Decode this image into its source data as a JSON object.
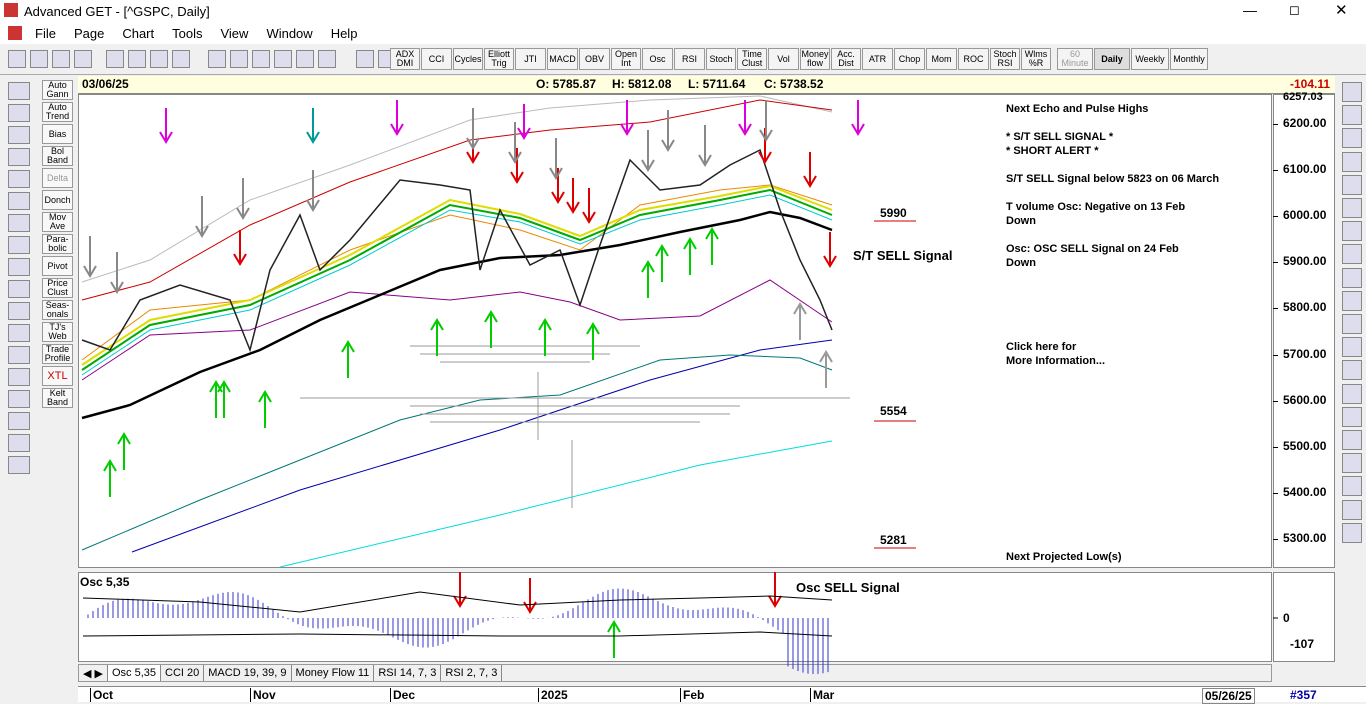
{
  "window": {
    "title": "Advanced GET - [^GSPC, Daily]"
  },
  "menu": [
    "File",
    "Page",
    "Chart",
    "Tools",
    "View",
    "Window",
    "Help"
  ],
  "toolbar": {
    "indicators": [
      "ADX DMI",
      "CCI",
      "Cycles",
      "Elliott Trig",
      "JTI",
      "MACD",
      "OBV",
      "Open Int",
      "Osc",
      "RSI",
      "Stoch",
      "Time Clust",
      "Vol",
      "Money flow",
      "Acc. Dist",
      "ATR",
      "Chop",
      "Mom",
      "ROC",
      "Stoch RSI",
      "Wlms %R"
    ],
    "periods": [
      "60 Minute",
      "Daily",
      "Weekly",
      "Monthly"
    ]
  },
  "left_tools": [
    "Auto Gann",
    "Auto Trend",
    "Bias",
    "Bol Band",
    "Delta",
    "Donch",
    "Mov Ave",
    "Para-bolic",
    "Pivot",
    "Price Clust",
    "Seas-onals",
    "TJ's Web",
    "Trade Profile",
    "XTL",
    "Kelt Band"
  ],
  "header": {
    "date": "03/06/25",
    "open": "O: 5785.87",
    "high": "H: 5812.08",
    "low": "L: 5711.64",
    "close": "C: 5738.52",
    "change": "-104.11"
  },
  "price_axis": {
    "top": "6257.03",
    "ticks": [
      "6200.00",
      "6100.00",
      "6000.00",
      "5900.00",
      "5800.00",
      "5700.00",
      "5600.00",
      "5500.00",
      "5400.00",
      "5300.00"
    ]
  },
  "annotations": {
    "level_high": "5990",
    "signal": "S/T SELL Signal",
    "level_mid": "5554",
    "level_low": "5281",
    "osc_signal": "Osc SELL Signal"
  },
  "info_panel": {
    "lines": [
      "Next Echo and Pulse Highs",
      "* S/T SELL SIGNAL *",
      "* SHORT ALERT *",
      "S/T SELL Signal below 5823 on 06 March",
      "T volume Osc: Negative on 13 Feb",
      "Down",
      "Osc: OSC SELL Signal on 24 Feb",
      "Down",
      "Click here for",
      "More Information...",
      "Next Projected Low(s)"
    ]
  },
  "oscillator": {
    "label": "Osc 5,35",
    "zero": "0",
    "value": "-107"
  },
  "tabs": [
    "Osc 5,35",
    "CCI 20",
    "MACD 19, 39, 9",
    "Money Flow 11",
    "RSI 14, 7, 3",
    "RSI 2, 7, 3"
  ],
  "time_axis": {
    "months": [
      "Oct",
      "Nov",
      "Dec",
      "2025",
      "Feb",
      "Mar"
    ],
    "end_date": "05/26/25",
    "bar_count": "#357"
  }
}
